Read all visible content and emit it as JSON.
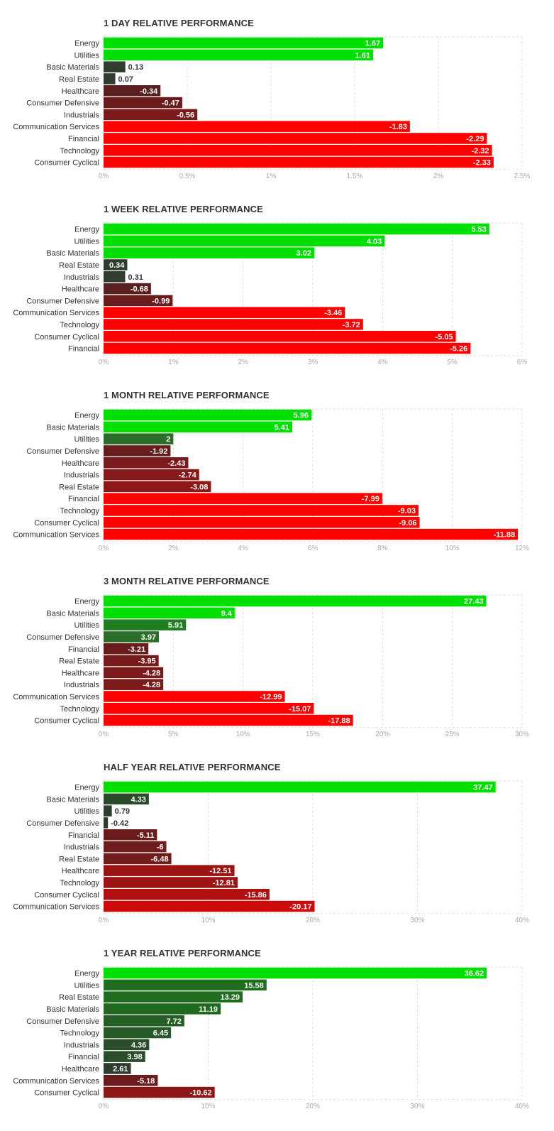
{
  "charts": [
    {
      "type": "bar",
      "orientation": "horizontal",
      "title": "1 DAY RELATIVE PERFORMANCE",
      "categories": [
        "Energy",
        "Utilities",
        "Basic Materials",
        "Real Estate",
        "Healthcare",
        "Consumer Defensive",
        "Industrials",
        "Communication Services",
        "Financial",
        "Technology",
        "Consumer Cyclical"
      ],
      "values": [
        1.67,
        1.61,
        0.13,
        0.07,
        -0.34,
        -0.47,
        -0.56,
        -1.83,
        -2.29,
        -2.32,
        -2.33
      ],
      "value_labels": [
        "1.67",
        "1.61",
        "0.13",
        "0.07",
        "-0.34",
        "-0.47",
        "-0.56",
        "-1.83",
        "-2.29",
        "-2.32",
        "-2.33"
      ],
      "colors": [
        "#00e000",
        "#00e000",
        "#2e3d2e",
        "#2e3d2e",
        "#5a2020",
        "#6a1c1c",
        "#7a1a1a",
        "#ff0000",
        "#ff0000",
        "#ff0000",
        "#ff0000"
      ],
      "xlim": [
        0,
        2.5
      ],
      "ticks": [
        0,
        0.5,
        1,
        1.5,
        2,
        2.5
      ],
      "tick_labels": [
        "0%",
        "0.5%",
        "1%",
        "1.5%",
        "2%",
        "2.5%"
      ]
    },
    {
      "type": "bar",
      "orientation": "horizontal",
      "title": "1 WEEK RELATIVE PERFORMANCE",
      "categories": [
        "Energy",
        "Utilities",
        "Basic Materials",
        "Real Estate",
        "Industrials",
        "Healthcare",
        "Consumer Defensive",
        "Communication Services",
        "Technology",
        "Consumer Cyclical",
        "Financial"
      ],
      "values": [
        5.53,
        4.03,
        3.02,
        0.34,
        0.31,
        -0.68,
        -0.99,
        -3.46,
        -3.72,
        -5.05,
        -5.26
      ],
      "value_labels": [
        "5.53",
        "4.03",
        "3.02",
        "0.34",
        "0.31",
        "-0.68",
        "-0.99",
        "-3.46",
        "-3.72",
        "-5.05",
        "-5.26"
      ],
      "colors": [
        "#00e000",
        "#00e000",
        "#00e000",
        "#2e3d2e",
        "#2e3d2e",
        "#5a2020",
        "#6a1c1c",
        "#ff0000",
        "#ff0000",
        "#ff0000",
        "#ff0000"
      ],
      "xlim": [
        0,
        6
      ],
      "ticks": [
        0,
        1,
        2,
        3,
        4,
        5,
        6
      ],
      "tick_labels": [
        "0%",
        "1%",
        "2%",
        "3%",
        "4%",
        "5%",
        "6%"
      ]
    },
    {
      "type": "bar",
      "orientation": "horizontal",
      "title": "1 MONTH RELATIVE PERFORMANCE",
      "categories": [
        "Energy",
        "Basic Materials",
        "Utilities",
        "Consumer Defensive",
        "Healthcare",
        "Industrials",
        "Real Estate",
        "Financial",
        "Technology",
        "Consumer Cyclical",
        "Communication Services"
      ],
      "values": [
        5.96,
        5.41,
        2,
        -1.92,
        -2.43,
        -2.74,
        -3.08,
        -7.99,
        -9.03,
        -9.06,
        -11.88
      ],
      "value_labels": [
        "5.96",
        "5.41",
        "2",
        "-1.92",
        "-2.43",
        "-2.74",
        "-3.08",
        "-7.99",
        "-9.03",
        "-9.06",
        "-11.88"
      ],
      "colors": [
        "#00e000",
        "#00e000",
        "#2a6e2a",
        "#6a1c1c",
        "#7a1a1a",
        "#861a1a",
        "#8e1818",
        "#ff0000",
        "#ff0000",
        "#ff0000",
        "#ff0000"
      ],
      "xlim": [
        0,
        12
      ],
      "ticks": [
        0,
        2,
        4,
        6,
        8,
        10,
        12
      ],
      "tick_labels": [
        "0%",
        "2%",
        "4%",
        "6%",
        "8%",
        "10%",
        "12%"
      ]
    },
    {
      "type": "bar",
      "orientation": "horizontal",
      "title": "3 MONTH RELATIVE PERFORMANCE",
      "categories": [
        "Energy",
        "Basic Materials",
        "Utilities",
        "Consumer Defensive",
        "Financial",
        "Real Estate",
        "Healthcare",
        "Industrials",
        "Communication Services",
        "Technology",
        "Consumer Cyclical"
      ],
      "values": [
        27.43,
        9.4,
        5.91,
        3.97,
        -3.21,
        -3.95,
        -4.28,
        -4.28,
        -12.99,
        -15.07,
        -17.88
      ],
      "value_labels": [
        "27.43",
        "9.4",
        "5.91",
        "3.97",
        "-3.21",
        "-3.95",
        "-4.28",
        "-4.28",
        "-12.99",
        "-15.07",
        "-17.88"
      ],
      "colors": [
        "#00e000",
        "#00e000",
        "#1f7e1f",
        "#2a6e2a",
        "#6a1c1c",
        "#761a1a",
        "#7a1a1a",
        "#7a1a1a",
        "#ff0000",
        "#ff0000",
        "#ff0000"
      ],
      "xlim": [
        0,
        30
      ],
      "ticks": [
        0,
        5,
        10,
        15,
        20,
        25,
        30
      ],
      "tick_labels": [
        "0%",
        "5%",
        "10%",
        "15%",
        "20%",
        "25%",
        "30%"
      ]
    },
    {
      "type": "bar",
      "orientation": "horizontal",
      "title": "HALF YEAR RELATIVE PERFORMANCE",
      "categories": [
        "Energy",
        "Basic Materials",
        "Utilities",
        "Consumer Defensive",
        "Financial",
        "Industrials",
        "Real Estate",
        "Healthcare",
        "Technology",
        "Consumer Cyclical",
        "Communication Services"
      ],
      "values": [
        37.47,
        4.33,
        0.79,
        -0.42,
        -5.11,
        -6,
        -6.48,
        -12.51,
        -12.81,
        -15.86,
        -20.17
      ],
      "value_labels": [
        "37.47",
        "4.33",
        "0.79",
        "-0.42",
        "-5.11",
        "-6",
        "-6.48",
        "-12.51",
        "-12.81",
        "-15.86",
        "-20.17"
      ],
      "colors": [
        "#00e000",
        "#2a4a2a",
        "#2e3d2e",
        "#2e3d2e",
        "#6a1c1c",
        "#6e1c1c",
        "#721c1c",
        "#9a1414",
        "#9e1414",
        "#b01010",
        "#cc0a0a"
      ],
      "xlim": [
        0,
        40
      ],
      "ticks": [
        0,
        10,
        20,
        30,
        40
      ],
      "tick_labels": [
        "0%",
        "10%",
        "20%",
        "30%",
        "40%"
      ]
    },
    {
      "type": "bar",
      "orientation": "horizontal",
      "title": "1 YEAR RELATIVE PERFORMANCE",
      "categories": [
        "Energy",
        "Utilities",
        "Real Estate",
        "Basic Materials",
        "Consumer Defensive",
        "Technology",
        "Industrials",
        "Financial",
        "Healthcare",
        "Communication Services",
        "Consumer Cyclical"
      ],
      "values": [
        36.62,
        15.58,
        13.29,
        11.19,
        7.72,
        6.45,
        4.36,
        3.98,
        2.61,
        -5.18,
        -10.62
      ],
      "value_labels": [
        "36.62",
        "15.58",
        "13.29",
        "11.19",
        "7.72",
        "6.45",
        "4.36",
        "3.98",
        "2.61",
        "-5.18",
        "-10.62"
      ],
      "colors": [
        "#00e000",
        "#1f6e1f",
        "#1f6e1f",
        "#206a20",
        "#245e24",
        "#265a26",
        "#2a4e2a",
        "#2a4e2a",
        "#2e3d2e",
        "#6a1c1c",
        "#8a1616"
      ],
      "xlim": [
        0,
        40
      ],
      "ticks": [
        0,
        10,
        20,
        30,
        40
      ],
      "tick_labels": [
        "0%",
        "10%",
        "20%",
        "30%",
        "40%"
      ]
    }
  ]
}
